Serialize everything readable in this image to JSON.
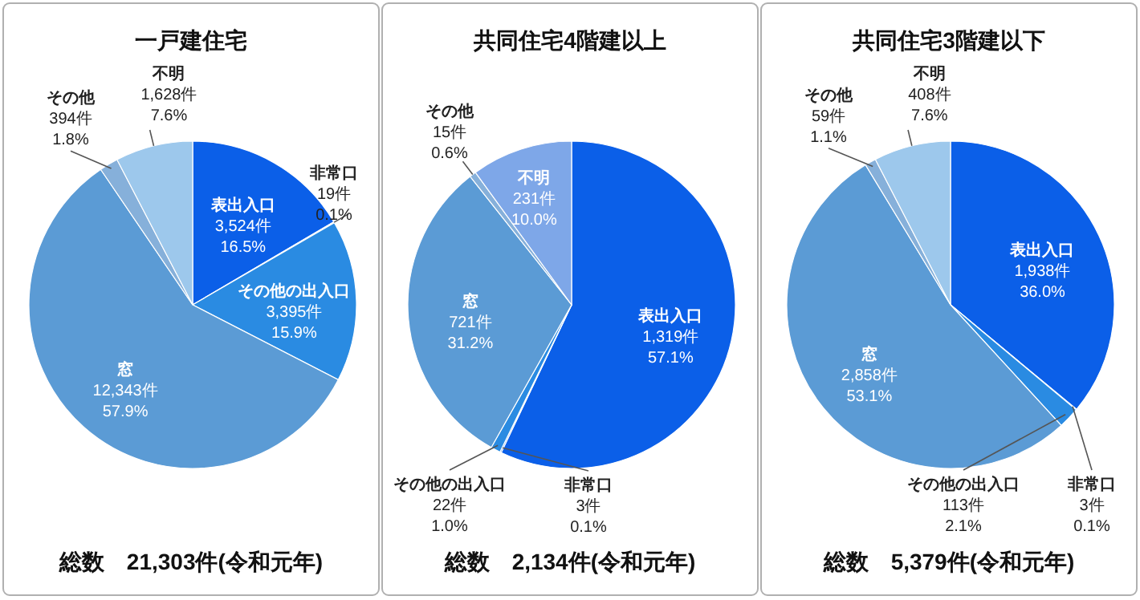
{
  "chart_data": [
    {
      "type": "pie",
      "title": "一戸建住宅",
      "categories": [
        "表出入口",
        "非常口",
        "その他の出入口",
        "窓",
        "その他",
        "不明"
      ],
      "values": [
        3524,
        19,
        3395,
        12343,
        394,
        1628
      ],
      "value_labels": [
        "3,524件\n16.5%",
        "19件\n0.1%",
        "3,395件\n15.9%",
        "12,343件\n57.9%",
        "394件\n1.8%",
        "1,628件\n7.6%"
      ],
      "colors": [
        "#0b5fe8",
        "#1a6fe6",
        "#2a8be2",
        "#5b9bd5",
        "#86b0da",
        "#9dc8ec"
      ],
      "annotations": [
        "総数　21,303件(令和元年)"
      ]
    },
    {
      "type": "pie",
      "title": "共同住宅4階建以上",
      "categories": [
        "表出入口",
        "非常口",
        "その他の出入口",
        "窓",
        "その他",
        "不明"
      ],
      "values": [
        1319,
        3,
        22,
        721,
        15,
        231
      ],
      "value_labels": [
        "1,319件\n57.1%",
        "3件\n0.1%",
        "22件\n1.0%",
        "721件\n31.2%",
        "15件\n0.6%",
        "231件\n10.0%"
      ],
      "colors": [
        "#0b5fe8",
        "#1a6fe6",
        "#2a8be2",
        "#5b9bd5",
        "#86b0da",
        "#7ea7e8"
      ],
      "annotations": [
        "総数　2,134件(令和元年)"
      ]
    },
    {
      "type": "pie",
      "title": "共同住宅3階建以下",
      "categories": [
        "表出入口",
        "非常口",
        "その他の出入口",
        "窓",
        "その他",
        "不明"
      ],
      "values": [
        1938,
        3,
        113,
        2858,
        59,
        408
      ],
      "value_labels": [
        "1,938件\n36.0%",
        "3件\n0.1%",
        "113件\n2.1%",
        "2,858件\n53.1%",
        "59件\n1.1%",
        "408件\n7.6%"
      ],
      "colors": [
        "#0b5fe8",
        "#1a6fe6",
        "#2a8be2",
        "#5b9bd5",
        "#86b0da",
        "#9dc8ec"
      ],
      "annotations": [
        "総数　5,379件(令和元年)"
      ]
    }
  ]
}
